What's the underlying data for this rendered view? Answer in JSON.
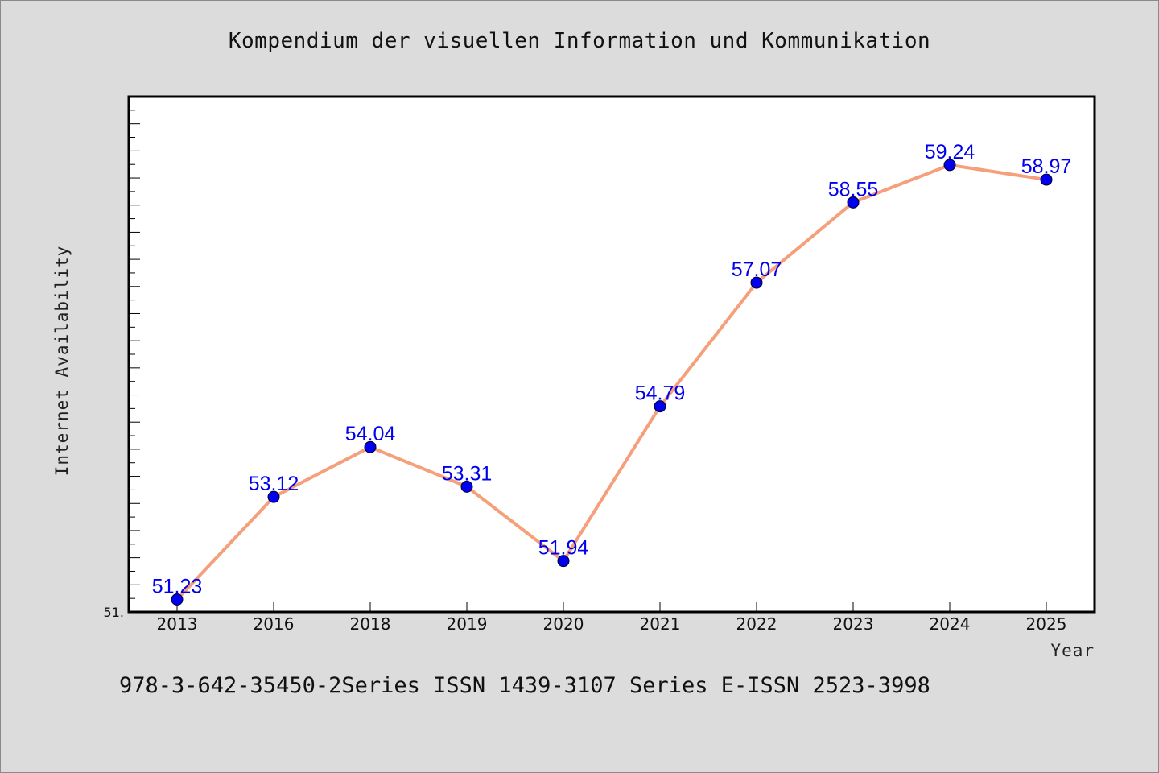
{
  "chart_data": {
    "type": "line",
    "title": "Kompendium der visuellen Information und Kommunikation",
    "xlabel": "Year",
    "ylabel": "Internet Availability",
    "categories": [
      "2013",
      "2016",
      "2018",
      "2019",
      "2020",
      "2021",
      "2022",
      "2023",
      "2024",
      "2025"
    ],
    "series": [
      {
        "values": [
          51.23,
          53.12,
          54.04,
          53.31,
          51.94,
          54.79,
          57.07,
          58.55,
          59.24,
          58.97
        ],
        "data_labels": [
          "51.23",
          "53.12",
          "54.04",
          "53.31",
          "51.94",
          "54.79",
          "57.07",
          "58.55",
          "59.24",
          "58.97"
        ]
      }
    ],
    "ylim": [
      51.0,
      60.5
    ],
    "y_tick_labels_shown": [
      "51."
    ],
    "grid": false,
    "colors": {
      "line": "#f5a07a",
      "marker": "#0000ee",
      "data_label": "#0000ee",
      "plot_background": "#ffffff",
      "figure_background": "#dcdcdc"
    }
  },
  "footer": {
    "text": "978-3-642-35450-2Series ISSN 1439-3107 Series E-ISSN 2523-3998"
  }
}
